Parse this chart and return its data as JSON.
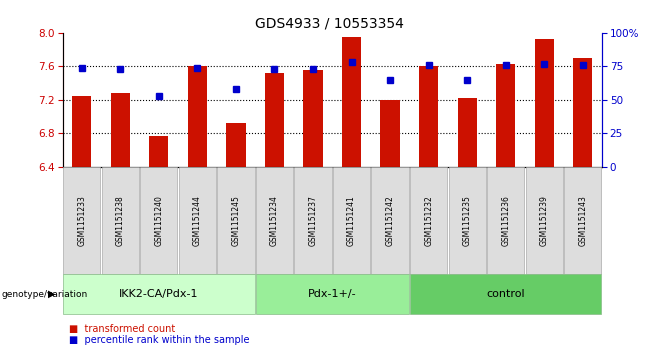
{
  "title": "GDS4933 / 10553354",
  "samples": [
    "GSM1151233",
    "GSM1151238",
    "GSM1151240",
    "GSM1151244",
    "GSM1151245",
    "GSM1151234",
    "GSM1151237",
    "GSM1151241",
    "GSM1151242",
    "GSM1151232",
    "GSM1151235",
    "GSM1151236",
    "GSM1151239",
    "GSM1151243"
  ],
  "bar_values": [
    7.25,
    7.28,
    6.77,
    7.6,
    6.92,
    7.52,
    7.55,
    7.95,
    7.2,
    7.6,
    7.22,
    7.63,
    7.93,
    7.7
  ],
  "percentile_values": [
    74,
    73,
    53,
    74,
    58,
    73,
    73,
    78,
    65,
    76,
    65,
    76,
    77,
    76
  ],
  "groups": [
    {
      "label": "IKK2-CA/Pdx-1",
      "start": 0,
      "end": 5,
      "color": "#ccffcc"
    },
    {
      "label": "Pdx-1+/-",
      "start": 5,
      "end": 9,
      "color": "#99ee99"
    },
    {
      "label": "control",
      "start": 9,
      "end": 14,
      "color": "#66cc66"
    }
  ],
  "ylim_left": [
    6.4,
    8.0
  ],
  "ylim_right": [
    0,
    100
  ],
  "yticks_left": [
    6.4,
    6.8,
    7.2,
    7.6,
    8.0
  ],
  "yticks_right": [
    0,
    25,
    50,
    75,
    100
  ],
  "bar_color": "#cc1100",
  "dot_color": "#0000cc",
  "plot_bg_color": "#ffffff",
  "ylabel_left_color": "#cc0000",
  "ylabel_right_color": "#0000cc",
  "legend_red_label": "transformed count",
  "legend_blue_label": "percentile rank within the sample",
  "genotype_label": "genotype/variation",
  "tick_label_area_color": "#dddddd",
  "group_label_fontsize": 8,
  "title_fontsize": 10
}
